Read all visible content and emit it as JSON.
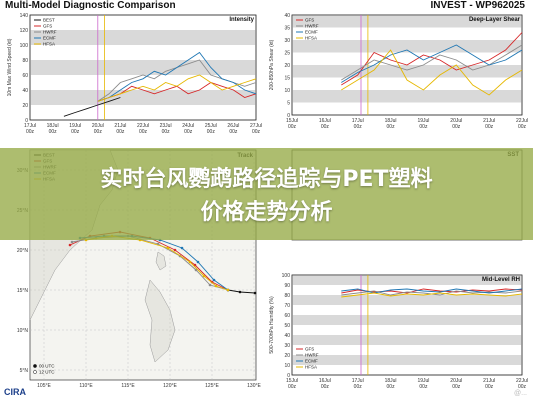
{
  "header": {
    "left_title": "Multi-Model Diagnostic Comparison",
    "right_title": "INVEST - WP962025"
  },
  "overlay": {
    "line1": "实时台风鹦鹉路径追踪与PET塑料",
    "line2": "价格走势分析"
  },
  "footer": {
    "logo": "CIRA",
    "watermark": "@..."
  },
  "legend_models": [
    "BEST",
    "GFS",
    "HWRF",
    "ECMF",
    "HFSA"
  ],
  "colors": {
    "BEST": "#111111",
    "GFS": "#d62728",
    "HWRF": "#8c8c8c",
    "ECMF": "#1f77b4",
    "HFSA": "#e6b800",
    "spaghetti": "#cc66cc"
  },
  "chart_data": [
    {
      "type": "line",
      "title": "Intensity",
      "ylabel": "10m Max Wind Speed (kt)",
      "ylim": [
        0,
        140
      ],
      "yticks": [
        "0",
        "20",
        "40",
        "60",
        "80",
        "100",
        "120",
        "140"
      ],
      "xticks": [
        "17Jul 00z",
        "18Jul 00z",
        "19Jul 00z",
        "20Jul 00z",
        "21Jul 00z",
        "22Jul 00z",
        "23Jul 00z",
        "24Jul 00z",
        "25Jul 00z",
        "26Jul 00z",
        "27Jul 00z"
      ],
      "x": [
        0,
        0.5,
        1,
        1.5,
        2,
        2.5,
        3,
        3.5,
        4,
        4.5,
        5,
        5.5,
        6,
        6.5,
        7,
        7.5,
        8,
        8.5,
        9,
        9.5,
        10
      ],
      "series": [
        {
          "name": "BEST",
          "values": [
            null,
            null,
            null,
            5,
            10,
            15,
            20,
            25,
            30,
            null,
            null,
            null,
            null,
            null,
            null,
            null,
            null,
            null,
            null,
            null,
            null
          ]
        },
        {
          "name": "GFS",
          "values": [
            null,
            null,
            null,
            null,
            null,
            null,
            25,
            30,
            35,
            45,
            40,
            35,
            40,
            45,
            35,
            40,
            50,
            45,
            40,
            30,
            35
          ]
        },
        {
          "name": "HWRF",
          "values": [
            null,
            null,
            null,
            null,
            null,
            null,
            25,
            35,
            50,
            55,
            60,
            55,
            65,
            70,
            75,
            80,
            60,
            55,
            50,
            45,
            50
          ]
        },
        {
          "name": "ECMF",
          "values": [
            null,
            null,
            null,
            null,
            null,
            null,
            25,
            30,
            40,
            50,
            55,
            65,
            60,
            70,
            80,
            90,
            70,
            55,
            50,
            40,
            35
          ]
        },
        {
          "name": "HFSA",
          "values": [
            null,
            null,
            null,
            null,
            null,
            null,
            25,
            30,
            35,
            40,
            45,
            40,
            50,
            45,
            55,
            60,
            50,
            40,
            45,
            50,
            55
          ]
        }
      ]
    },
    {
      "type": "line",
      "title": "Deep-Layer Shear",
      "ylabel": "200-850hPa Shear (kt)",
      "ylim": [
        0,
        40
      ],
      "yticks": [
        "0",
        "5",
        "10",
        "15",
        "20",
        "25",
        "30",
        "35",
        "40"
      ],
      "xticks": [
        "15Jul 00z",
        "16Jul 00z",
        "17Jul 00z",
        "18Jul 00z",
        "19Jul 00z",
        "20Jul 00z",
        "21Jul 00z",
        "22Jul 00z"
      ],
      "x": [
        0,
        0.5,
        1,
        1.5,
        2,
        2.5,
        3,
        3.5,
        4,
        4.5,
        5,
        5.5,
        6,
        6.5,
        7
      ],
      "series": [
        {
          "name": "GFS",
          "values": [
            null,
            null,
            null,
            12,
            16,
            25,
            22,
            20,
            24,
            22,
            18,
            20,
            22,
            26,
            33
          ]
        },
        {
          "name": "HWRF",
          "values": [
            null,
            null,
            null,
            14,
            18,
            22,
            20,
            18,
            20,
            24,
            22,
            18,
            20,
            24,
            28
          ]
        },
        {
          "name": "ECMF",
          "values": [
            null,
            null,
            null,
            13,
            17,
            20,
            24,
            26,
            22,
            25,
            28,
            24,
            20,
            22,
            26
          ]
        },
        {
          "name": "HFSA",
          "values": [
            null,
            null,
            null,
            10,
            14,
            18,
            26,
            14,
            10,
            16,
            20,
            12,
            8,
            14,
            18
          ]
        }
      ]
    },
    {
      "type": "line",
      "title": "Mid-Level RH",
      "ylabel": "500-700hPa Humidity (%)",
      "ylim": [
        0,
        100
      ],
      "yticks": [
        "0",
        "10",
        "20",
        "30",
        "40",
        "50",
        "60",
        "70",
        "80",
        "90",
        "100"
      ],
      "xticks": [
        "15Jul 00z",
        "16Jul 00z",
        "17Jul 00z",
        "18Jul 00z",
        "19Jul 00z",
        "20Jul 00z",
        "21Jul 00z",
        "22Jul 00z"
      ],
      "x": [
        0,
        0.5,
        1,
        1.5,
        2,
        2.5,
        3,
        3.5,
        4,
        4.5,
        5,
        5.5,
        6,
        6.5,
        7
      ],
      "series": [
        {
          "name": "GFS",
          "values": [
            null,
            null,
            null,
            82,
            85,
            83,
            84,
            82,
            86,
            84,
            83,
            85,
            84,
            86,
            85
          ]
        },
        {
          "name": "HWRF",
          "values": [
            null,
            null,
            null,
            80,
            82,
            84,
            80,
            83,
            82,
            80,
            84,
            82,
            83,
            82,
            84
          ]
        },
        {
          "name": "ECMF",
          "values": [
            null,
            null,
            null,
            84,
            86,
            82,
            85,
            86,
            84,
            83,
            86,
            84,
            82,
            84,
            86
          ]
        },
        {
          "name": "HFSA",
          "values": [
            null,
            null,
            null,
            78,
            80,
            82,
            79,
            81,
            80,
            82,
            80,
            81,
            80,
            79,
            81
          ]
        }
      ]
    },
    {
      "type": "scatter",
      "title": "Track",
      "xticks": [
        "105°E",
        "110°E",
        "115°E",
        "120°E",
        "125°E",
        "130°E"
      ],
      "yticks": [
        "5°N",
        "10°N",
        "15°N",
        "20°N",
        "25°N",
        "30°N"
      ],
      "legend": [
        "00 UTC",
        "12 UTC"
      ]
    }
  ]
}
